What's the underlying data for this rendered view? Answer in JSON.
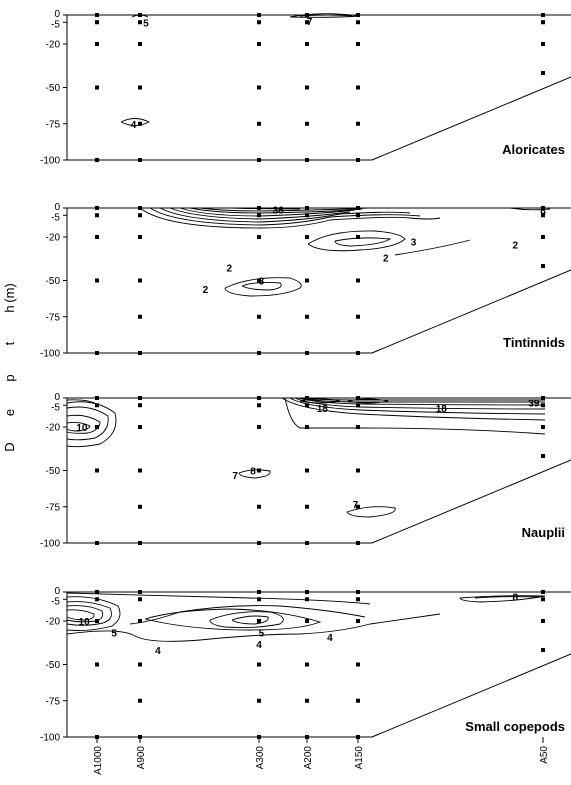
{
  "chart_data": {
    "type": "contour",
    "ylabel": "D e p t h",
    "yunit": "(m)",
    "stations": [
      "A1000",
      "A900",
      "A300",
      "A200",
      "A150",
      "A50"
    ],
    "yticks": [
      0,
      -5,
      -20,
      -50,
      -75,
      -100
    ],
    "ylim": [
      -100,
      0
    ],
    "grid": false,
    "legend": "none",
    "panels": [
      {
        "name": "Aloricates",
        "sample_points": [
          {
            "station": "A1000",
            "depths": [
              0,
              -5,
              -20,
              -50,
              -100
            ]
          },
          {
            "station": "A900",
            "depths": [
              0,
              -5,
              -20,
              -50,
              -75,
              -100
            ]
          },
          {
            "station": "A300",
            "depths": [
              0,
              -5,
              -20,
              -50,
              -75,
              -100
            ]
          },
          {
            "station": "A200",
            "depths": [
              0,
              -5,
              -20,
              -50,
              -75,
              -100
            ]
          },
          {
            "station": "A150",
            "depths": [
              0,
              -5,
              -20,
              -50,
              -75,
              -100
            ]
          },
          {
            "station": "A50",
            "depths": [
              0,
              -5,
              -20,
              -40
            ]
          }
        ],
        "contour_labels": [
          {
            "text": "5",
            "station_pos": 1.05,
            "depth": -5
          },
          {
            "text": "7",
            "station_pos": 3.05,
            "depth": -4
          },
          {
            "text": "4",
            "station_pos": 0.85,
            "depth": -75
          }
        ]
      },
      {
        "name": "Tintinnids",
        "sample_points": [
          {
            "station": "A1000",
            "depths": [
              0,
              -5,
              -20,
              -50,
              -100
            ]
          },
          {
            "station": "A900",
            "depths": [
              0,
              -5,
              -20,
              -50,
              -75,
              -100
            ]
          },
          {
            "station": "A300",
            "depths": [
              0,
              -5,
              -20,
              -50,
              -75,
              -100
            ]
          },
          {
            "station": "A200",
            "depths": [
              0,
              -5,
              -20,
              -50,
              -75,
              -100
            ]
          },
          {
            "station": "A150",
            "depths": [
              0,
              -5,
              -20,
              -50,
              -75,
              -100
            ]
          },
          {
            "station": "A50",
            "depths": [
              0,
              -5,
              -20,
              -40
            ]
          }
        ],
        "contour_labels": [
          {
            "text": "36",
            "station_pos": 2.4,
            "depth": -1
          },
          {
            "text": "9",
            "station_pos": 5.0,
            "depth": -3
          },
          {
            "text": "3",
            "station_pos": 4.3,
            "depth": -23
          },
          {
            "text": "2",
            "station_pos": 4.85,
            "depth": -25
          },
          {
            "text": "2",
            "station_pos": 4.15,
            "depth": -34
          },
          {
            "text": "2",
            "station_pos": 1.75,
            "depth": -41
          },
          {
            "text": "3",
            "station_pos": 2.05,
            "depth": -50
          },
          {
            "text": "2",
            "station_pos": 1.55,
            "depth": -56
          }
        ]
      },
      {
        "name": "Nauplii",
        "sample_points": [
          {
            "station": "A1000",
            "depths": [
              0,
              -5,
              -20,
              -50,
              -100
            ]
          },
          {
            "station": "A900",
            "depths": [
              0,
              -5,
              -20,
              -50,
              -75,
              -100
            ]
          },
          {
            "station": "A300",
            "depths": [
              0,
              -5,
              -20,
              -50,
              -75,
              -100
            ]
          },
          {
            "station": "A200",
            "depths": [
              0,
              -5,
              -20,
              -50,
              -75,
              -100
            ]
          },
          {
            "station": "A150",
            "depths": [
              0,
              -5,
              -20,
              -50,
              -75,
              -100
            ]
          },
          {
            "station": "A50",
            "depths": [
              0,
              -5,
              -20,
              -40
            ]
          }
        ],
        "contour_labels": [
          {
            "text": "10",
            "station_pos": -0.35,
            "depth": -20
          },
          {
            "text": "18",
            "station_pos": 3.3,
            "depth": -7
          },
          {
            "text": "18",
            "station_pos": 4.45,
            "depth": -7
          },
          {
            "text": "39",
            "station_pos": 4.95,
            "depth": -3
          },
          {
            "text": "8",
            "station_pos": 1.95,
            "depth": -50
          },
          {
            "text": "7",
            "station_pos": 1.8,
            "depth": -53
          },
          {
            "text": "7",
            "station_pos": 3.95,
            "depth": -73
          }
        ]
      },
      {
        "name": "Small copepods",
        "sample_points": [
          {
            "station": "A1000",
            "depths": [
              0,
              -5,
              -20,
              -50,
              -100
            ]
          },
          {
            "station": "A900",
            "depths": [
              0,
              -5,
              -20,
              -50,
              -75,
              -100
            ]
          },
          {
            "station": "A300",
            "depths": [
              0,
              -5,
              -20,
              -50,
              -75,
              -100
            ]
          },
          {
            "station": "A200",
            "depths": [
              0,
              -5,
              -20,
              -50,
              -75,
              -100
            ]
          },
          {
            "station": "A150",
            "depths": [
              0,
              -5,
              -20,
              -50,
              -75,
              -100
            ]
          },
          {
            "station": "A50",
            "depths": [
              0,
              -5,
              -20,
              -40
            ]
          }
        ],
        "contour_labels": [
          {
            "text": "10",
            "station_pos": -0.3,
            "depth": -20
          },
          {
            "text": "5",
            "station_pos": 0.4,
            "depth": -28
          },
          {
            "text": "4",
            "station_pos": 1.15,
            "depth": -40
          },
          {
            "text": "5",
            "station_pos": 2.05,
            "depth": -28
          },
          {
            "text": "4",
            "station_pos": 2.0,
            "depth": -36
          },
          {
            "text": "4",
            "station_pos": 3.45,
            "depth": -31
          },
          {
            "text": "8",
            "station_pos": 4.85,
            "depth": -3
          }
        ]
      }
    ]
  }
}
